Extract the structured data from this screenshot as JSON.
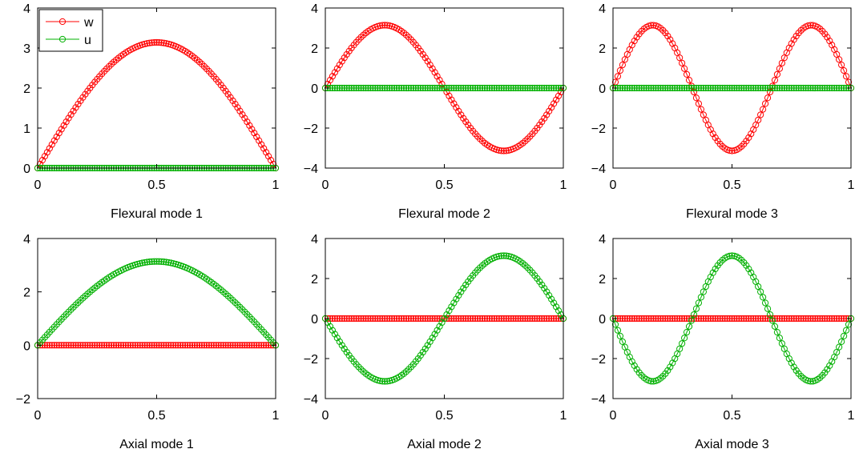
{
  "colors": {
    "w": "#ff0000",
    "u": "#00b000"
  },
  "legend": {
    "placement": "top-left",
    "entries": [
      "w",
      "u"
    ]
  },
  "chart_data": [
    {
      "type": "line",
      "xlabel": "Flexural mode 1",
      "xlim": [
        0,
        1
      ],
      "ylim": [
        0,
        4
      ],
      "xticks": [
        "0",
        "0.5",
        "1"
      ],
      "yticks": [
        "0",
        "1",
        "2",
        "3",
        "4"
      ],
      "series": [
        {
          "name": "w",
          "function": "pi*sin(pi*x)",
          "peak": 3.14
        },
        {
          "name": "u",
          "function": "0",
          "peak": 0
        }
      ]
    },
    {
      "type": "line",
      "xlabel": "Flexural mode 2",
      "xlim": [
        0,
        1
      ],
      "ylim": [
        -4,
        4
      ],
      "xticks": [
        "0",
        "0.5",
        "1"
      ],
      "yticks": [
        "−4",
        "−2",
        "0",
        "2",
        "4"
      ],
      "series": [
        {
          "name": "w",
          "function": "pi*sin(2*pi*x)",
          "peak": 3.14
        },
        {
          "name": "u",
          "function": "0",
          "peak": 0
        }
      ]
    },
    {
      "type": "line",
      "xlabel": "Flexural mode 3",
      "xlim": [
        0,
        1
      ],
      "ylim": [
        -4,
        4
      ],
      "xticks": [
        "0",
        "0.5",
        "1"
      ],
      "yticks": [
        "−4",
        "−2",
        "0",
        "2",
        "4"
      ],
      "series": [
        {
          "name": "w",
          "function": "pi*sin(3*pi*x)",
          "peak": 3.14
        },
        {
          "name": "u",
          "function": "0",
          "peak": 0
        }
      ]
    },
    {
      "type": "line",
      "xlabel": "Axial mode 1",
      "xlim": [
        0,
        1
      ],
      "ylim": [
        -2,
        4
      ],
      "xticks": [
        "0",
        "0.5",
        "1"
      ],
      "yticks": [
        "−2",
        "0",
        "2",
        "4"
      ],
      "series": [
        {
          "name": "w",
          "function": "0",
          "peak": 0
        },
        {
          "name": "u",
          "function": "pi*sin(pi*x)",
          "peak": 3.14
        }
      ]
    },
    {
      "type": "line",
      "xlabel": "Axial mode 2",
      "xlim": [
        0,
        1
      ],
      "ylim": [
        -4,
        4
      ],
      "xticks": [
        "0",
        "0.5",
        "1"
      ],
      "yticks": [
        "−4",
        "−2",
        "0",
        "2",
        "4"
      ],
      "series": [
        {
          "name": "w",
          "function": "0",
          "peak": 0
        },
        {
          "name": "u",
          "function": "-pi*sin(2*pi*x)",
          "peak": 3.14
        }
      ]
    },
    {
      "type": "line",
      "xlabel": "Axial mode 3",
      "xlim": [
        0,
        1
      ],
      "ylim": [
        -4,
        4
      ],
      "xticks": [
        "0",
        "0.5",
        "1"
      ],
      "yticks": [
        "−4",
        "−2",
        "0",
        "2",
        "4"
      ],
      "series": [
        {
          "name": "w",
          "function": "0",
          "peak": 0
        },
        {
          "name": "u",
          "function": "-pi*sin(3*pi*x)",
          "peak": 3.14
        }
      ]
    }
  ]
}
